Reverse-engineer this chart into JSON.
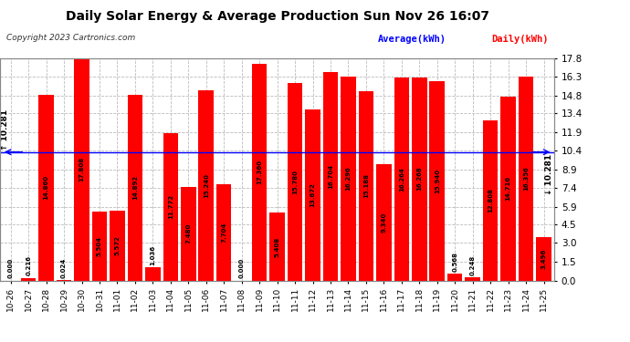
{
  "title": "Daily Solar Energy & Average Production Sun Nov 26 16:07",
  "copyright": "Copyright 2023 Cartronics.com",
  "legend_average": "Average(kWh)",
  "legend_daily": "Daily(kWh)",
  "average_value": 10.281,
  "avg_label_left": "↑ 10.281",
  "avg_label_right": "↓ 10.281",
  "categories": [
    "10-26",
    "10-27",
    "10-28",
    "10-29",
    "10-30",
    "10-31",
    "11-01",
    "11-02",
    "11-03",
    "11-04",
    "11-05",
    "11-06",
    "11-07",
    "11-08",
    "11-09",
    "11-10",
    "11-11",
    "11-12",
    "11-13",
    "11-14",
    "11-15",
    "11-16",
    "11-17",
    "11-18",
    "11-19",
    "11-20",
    "11-21",
    "11-22",
    "11-23",
    "11-24",
    "11-25"
  ],
  "values": [
    0.0,
    0.216,
    14.86,
    0.024,
    17.808,
    5.504,
    5.572,
    14.892,
    1.036,
    11.772,
    7.48,
    15.24,
    7.704,
    0.0,
    17.36,
    5.408,
    15.78,
    13.672,
    16.704,
    16.296,
    15.188,
    9.34,
    16.264,
    16.268,
    15.94,
    0.568,
    0.248,
    12.808,
    14.716,
    16.356,
    3.496
  ],
  "bar_color": "#ff0000",
  "avg_line_color": "#0000ff",
  "background_color": "#ffffff",
  "grid_color": "#bbbbbb",
  "ylim": [
    0.0,
    17.8
  ],
  "yticks": [
    0.0,
    1.5,
    3.0,
    4.5,
    5.9,
    7.4,
    8.9,
    10.4,
    11.9,
    13.4,
    14.8,
    16.3,
    17.8
  ]
}
